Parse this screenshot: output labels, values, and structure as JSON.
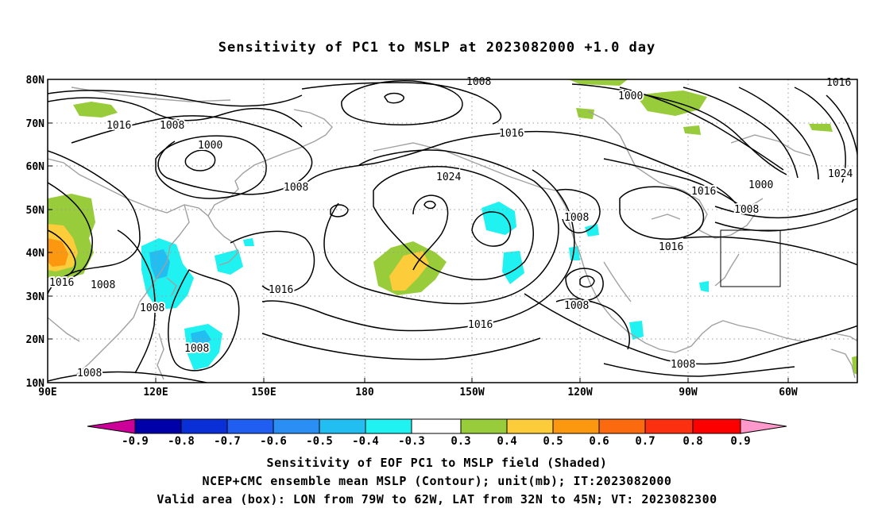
{
  "title": "Sensitivity of PC1 to MSLP at 2023082000 +1.0 day",
  "map": {
    "lat_labels": [
      "80N",
      "70N",
      "60N",
      "50N",
      "40N",
      "30N",
      "20N",
      "10N"
    ],
    "lon_labels": [
      "90E",
      "120E",
      "150E",
      "180",
      "150W",
      "120W",
      "90W",
      "60W"
    ],
    "contour_labels": [
      {
        "text": "1008",
        "lon": 199
      },
      {
        "text": "1016",
        "lon": 306
      },
      {
        "text": "1016",
        "lon": 120
      },
      {
        "text": "1008",
        "lon": 132
      },
      {
        "text": "1000",
        "lon": 133
      },
      {
        "text": "1008",
        "lon": 157
      },
      {
        "text": "1000",
        "lon": 242
      },
      {
        "text": "1016",
        "lon": 200
      },
      {
        "text": "1024",
        "lon": 196
      },
      {
        "text": "1024",
        "lon": 309
      },
      {
        "text": "1016",
        "lon": 280
      },
      {
        "text": "1000",
        "lon": 290
      },
      {
        "text": "1008",
        "lon": 288
      },
      {
        "text": "1008",
        "lon": 244
      },
      {
        "text": "1016",
        "lon": 270
      },
      {
        "text": "1016",
        "lon": 96
      },
      {
        "text": "1008",
        "lon": 107
      },
      {
        "text": "1016",
        "lon": 155
      },
      {
        "text": "1008",
        "lon": 122
      },
      {
        "text": "1008",
        "lon": 132
      },
      {
        "text": "1016",
        "lon": 214
      },
      {
        "text": "1008",
        "lon": 244
      },
      {
        "text": "1008",
        "lon": 266
      },
      {
        "text": "1008",
        "lon": 103
      }
    ]
  },
  "colorbar": {
    "labels": [
      "-0.9",
      "-0.8",
      "-0.7",
      "-0.6",
      "-0.5",
      "-0.4",
      "-0.3",
      "0.3",
      "0.4",
      "0.5",
      "0.6",
      "0.7",
      "0.8",
      "0.9"
    ],
    "colors": [
      "#cc0099",
      "#0000a8",
      "#0a2fd6",
      "#1f5ef0",
      "#2a8ef5",
      "#22bef2",
      "#20f2f2",
      "#ffffff",
      "#98cc3a",
      "#fccc3a",
      "#fc9810",
      "#fc6a10",
      "#fc3010",
      "#fc0000",
      "#ff99cc"
    ]
  },
  "caption": {
    "line1": "Sensitivity of EOF PC1 to MSLP field (Shaded)",
    "line2": "NCEP+CMC ensemble mean MSLP (Contour); unit(mb); IT:2023082000",
    "line3": "Valid area (box): LON from 79W to 62W, LAT from 32N to 45N; VT: 2023082300"
  }
}
